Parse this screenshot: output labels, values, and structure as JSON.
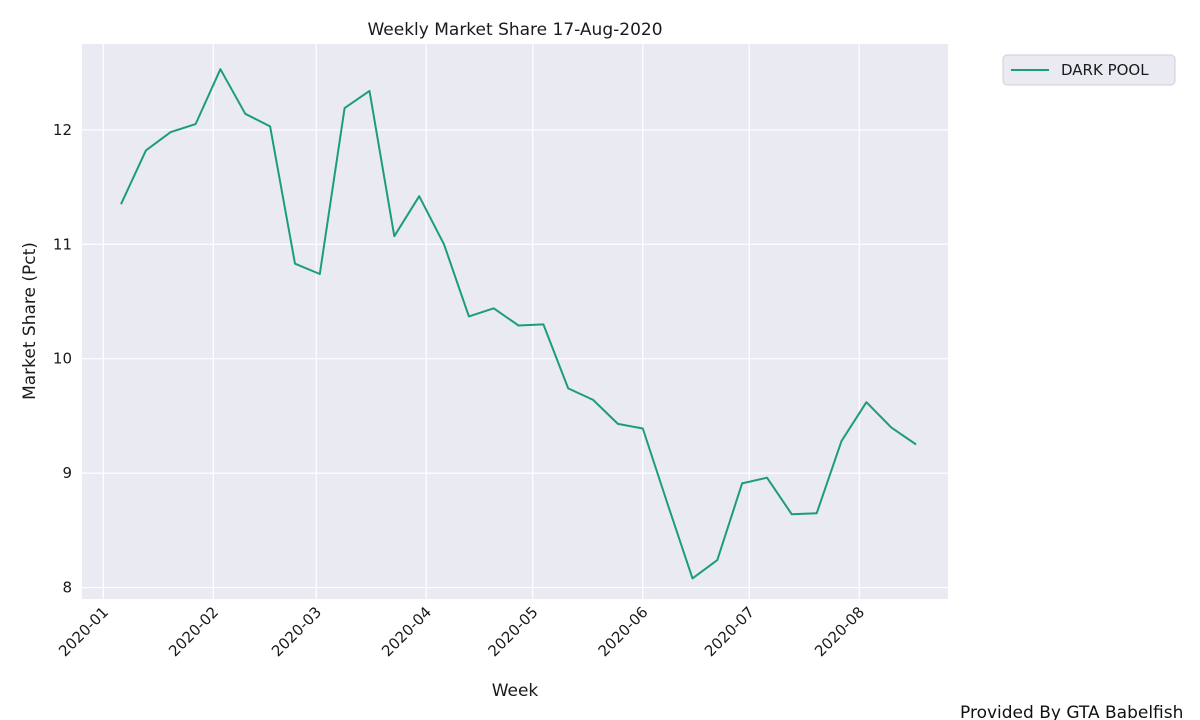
{
  "chart_data": {
    "type": "line",
    "title": "Weekly Market Share 17-Aug-2020",
    "xlabel": "Week",
    "ylabel": "Market Share (Pct)",
    "x_ticks": [
      "2020-01",
      "2020-02",
      "2020-03",
      "2020-04",
      "2020-05",
      "2020-06",
      "2020-07",
      "2020-08"
    ],
    "y_ticks": [
      8,
      9,
      10,
      11,
      12
    ],
    "xlim": [
      "2019-12-26",
      "2020-08-26"
    ],
    "ylim": [
      7.9,
      12.75
    ],
    "grid": true,
    "legend_position": "outside-top-right",
    "series": [
      {
        "name": "DARK POOL",
        "color": "#1b9e77",
        "x": [
          "2020-01-06",
          "2020-01-13",
          "2020-01-20",
          "2020-01-27",
          "2020-02-03",
          "2020-02-10",
          "2020-02-17",
          "2020-02-24",
          "2020-03-02",
          "2020-03-09",
          "2020-03-16",
          "2020-03-23",
          "2020-03-30",
          "2020-04-06",
          "2020-04-13",
          "2020-04-20",
          "2020-04-27",
          "2020-05-04",
          "2020-05-11",
          "2020-05-18",
          "2020-05-25",
          "2020-06-01",
          "2020-06-08",
          "2020-06-15",
          "2020-06-22",
          "2020-06-29",
          "2020-07-06",
          "2020-07-13",
          "2020-07-20",
          "2020-07-27",
          "2020-08-03",
          "2020-08-10",
          "2020-08-17"
        ],
        "values": [
          11.35,
          11.82,
          11.98,
          12.05,
          12.53,
          12.14,
          12.03,
          10.83,
          10.74,
          12.19,
          12.34,
          11.07,
          11.42,
          11.0,
          10.37,
          10.44,
          10.29,
          10.3,
          9.74,
          9.64,
          9.43,
          9.39,
          8.73,
          8.08,
          8.24,
          8.91,
          8.96,
          8.64,
          8.65,
          9.28,
          9.62,
          9.4,
          9.25
        ]
      }
    ]
  },
  "footer_text": "Provided By GTA Babelfish"
}
